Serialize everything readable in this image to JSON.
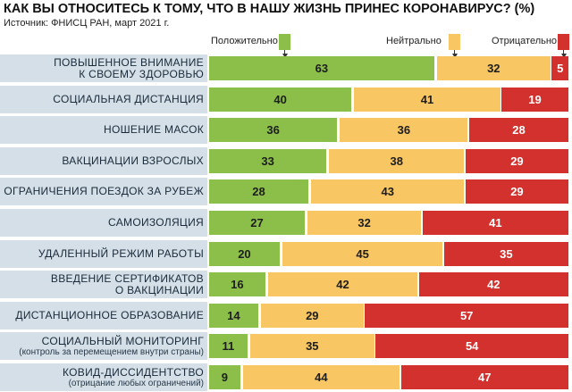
{
  "title": "КАК ВЫ ОТНОСИТЕСЬ К ТОМУ, ЧТО В НАШУ ЖИЗНЬ ПРИНЕС КОРОНАВИРУС? (%)",
  "source": "Источник: ФНИСЦ РАН, март 2021 г.",
  "colors": {
    "positive": "#8cbf4a",
    "neutral": "#f8c662",
    "negative": "#d3312d",
    "label_bg": "#d4dfe7"
  },
  "legend": [
    {
      "key": "positive",
      "label": "Положительно"
    },
    {
      "key": "neutral",
      "label": "Нейтрально"
    },
    {
      "key": "negative",
      "label": "Отрицательно"
    }
  ],
  "chart_data": {
    "type": "bar",
    "stacked": true,
    "orientation": "horizontal",
    "title": "КАК ВЫ ОТНОСИТЕСЬ К ТОМУ, ЧТО В НАШУ ЖИЗНЬ ПРИНЕС КОРОНАВИРУС? (%)",
    "xlabel": "",
    "ylabel": "",
    "xlim": [
      0,
      100
    ],
    "legend_position": "top",
    "categories": [
      {
        "label": "ПОВЫШЕННОЕ ВНИМАНИЕ",
        "label2": "К СВОЕМУ ЗДОРОВЬЮ",
        "note": ""
      },
      {
        "label": "СОЦИАЛЬНАЯ ДИСТАНЦИЯ",
        "label2": "",
        "note": ""
      },
      {
        "label": "НОШЕНИЕ МАСОК",
        "label2": "",
        "note": ""
      },
      {
        "label": "ВАКЦИНАЦИИ ВЗРОСЛЫХ",
        "label2": "",
        "note": ""
      },
      {
        "label": "ОГРАНИЧЕНИЯ ПОЕЗДОК ЗА РУБЕЖ",
        "label2": "",
        "note": ""
      },
      {
        "label": "САМОИЗОЛЯЦИЯ",
        "label2": "",
        "note": ""
      },
      {
        "label": "УДАЛЕННЫЙ РЕЖИМ РАБОТЫ",
        "label2": "",
        "note": ""
      },
      {
        "label": "ВВЕДЕНИЕ СЕРТИФИКАТОВ",
        "label2": "О ВАКЦИНАЦИИ",
        "note": ""
      },
      {
        "label": "ДИСТАНЦИОННОЕ ОБРАЗОВАНИЕ",
        "label2": "",
        "note": ""
      },
      {
        "label": "СОЦИАЛЬНЫЙ МОНИТОРИНГ",
        "label2": "",
        "note": "(контроль за перемещением внутри страны)"
      },
      {
        "label": "КОВИД-ДИССИДЕНТСТВО",
        "label2": "",
        "note": "(отрицание любых ограничений)"
      }
    ],
    "series": [
      {
        "name": "Положительно",
        "key": "positive",
        "values": [
          63,
          40,
          36,
          33,
          28,
          27,
          20,
          16,
          14,
          11,
          9
        ]
      },
      {
        "name": "Нейтрально",
        "key": "neutral",
        "values": [
          32,
          41,
          36,
          38,
          43,
          32,
          45,
          42,
          29,
          35,
          44
        ]
      },
      {
        "name": "Отрицательно",
        "key": "negative",
        "values": [
          5,
          19,
          28,
          29,
          29,
          41,
          35,
          42,
          57,
          54,
          47
        ]
      }
    ]
  }
}
